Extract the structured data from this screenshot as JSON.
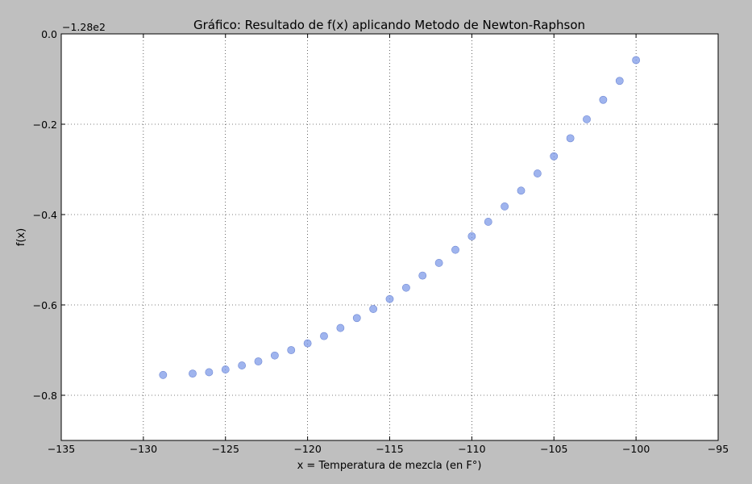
{
  "chart_data": {
    "type": "scatter",
    "title": "Gráfico: Resultado de f(x) aplicando Metodo de Newton-Raphson",
    "xlabel": "x = Temperatura de mezcla (en F°)",
    "ylabel": "f(x)",
    "y_offset_label": "−1.28e2",
    "xlim": [
      -135,
      -95
    ],
    "ylim": [
      -0.9,
      0.0
    ],
    "x_ticks": [
      -135,
      -130,
      -125,
      -120,
      -115,
      -110,
      -105,
      -100,
      -95
    ],
    "x_tick_labels": [
      "−135",
      "−130",
      "−125",
      "−120",
      "−115",
      "−110",
      "−105",
      "−100",
      "−95"
    ],
    "y_ticks": [
      0.0,
      -0.2,
      -0.4,
      -0.6,
      -0.8
    ],
    "y_tick_labels": [
      "0.0",
      "−0.2",
      "−0.4",
      "−0.6",
      "−0.8"
    ],
    "grid": true,
    "marker_color": "#7f9be8",
    "points": [
      {
        "x": -128.8,
        "y": -0.755
      },
      {
        "x": -127,
        "y": -0.752
      },
      {
        "x": -126,
        "y": -0.749
      },
      {
        "x": -125,
        "y": -0.743
      },
      {
        "x": -124,
        "y": -0.734
      },
      {
        "x": -123,
        "y": -0.725
      },
      {
        "x": -122,
        "y": -0.712
      },
      {
        "x": -121,
        "y": -0.7
      },
      {
        "x": -120,
        "y": -0.685
      },
      {
        "x": -119,
        "y": -0.669
      },
      {
        "x": -118,
        "y": -0.651
      },
      {
        "x": -117,
        "y": -0.629
      },
      {
        "x": -116,
        "y": -0.609
      },
      {
        "x": -115,
        "y": -0.587
      },
      {
        "x": -114,
        "y": -0.562
      },
      {
        "x": -113,
        "y": -0.535
      },
      {
        "x": -112,
        "y": -0.507
      },
      {
        "x": -111,
        "y": -0.478
      },
      {
        "x": -110,
        "y": -0.448
      },
      {
        "x": -109,
        "y": -0.416
      },
      {
        "x": -108,
        "y": -0.382
      },
      {
        "x": -107,
        "y": -0.347
      },
      {
        "x": -106,
        "y": -0.309
      },
      {
        "x": -105,
        "y": -0.271
      },
      {
        "x": -104,
        "y": -0.231
      },
      {
        "x": -103,
        "y": -0.189
      },
      {
        "x": -102,
        "y": -0.146
      },
      {
        "x": -101,
        "y": -0.104
      },
      {
        "x": -100,
        "y": -0.058
      }
    ]
  }
}
